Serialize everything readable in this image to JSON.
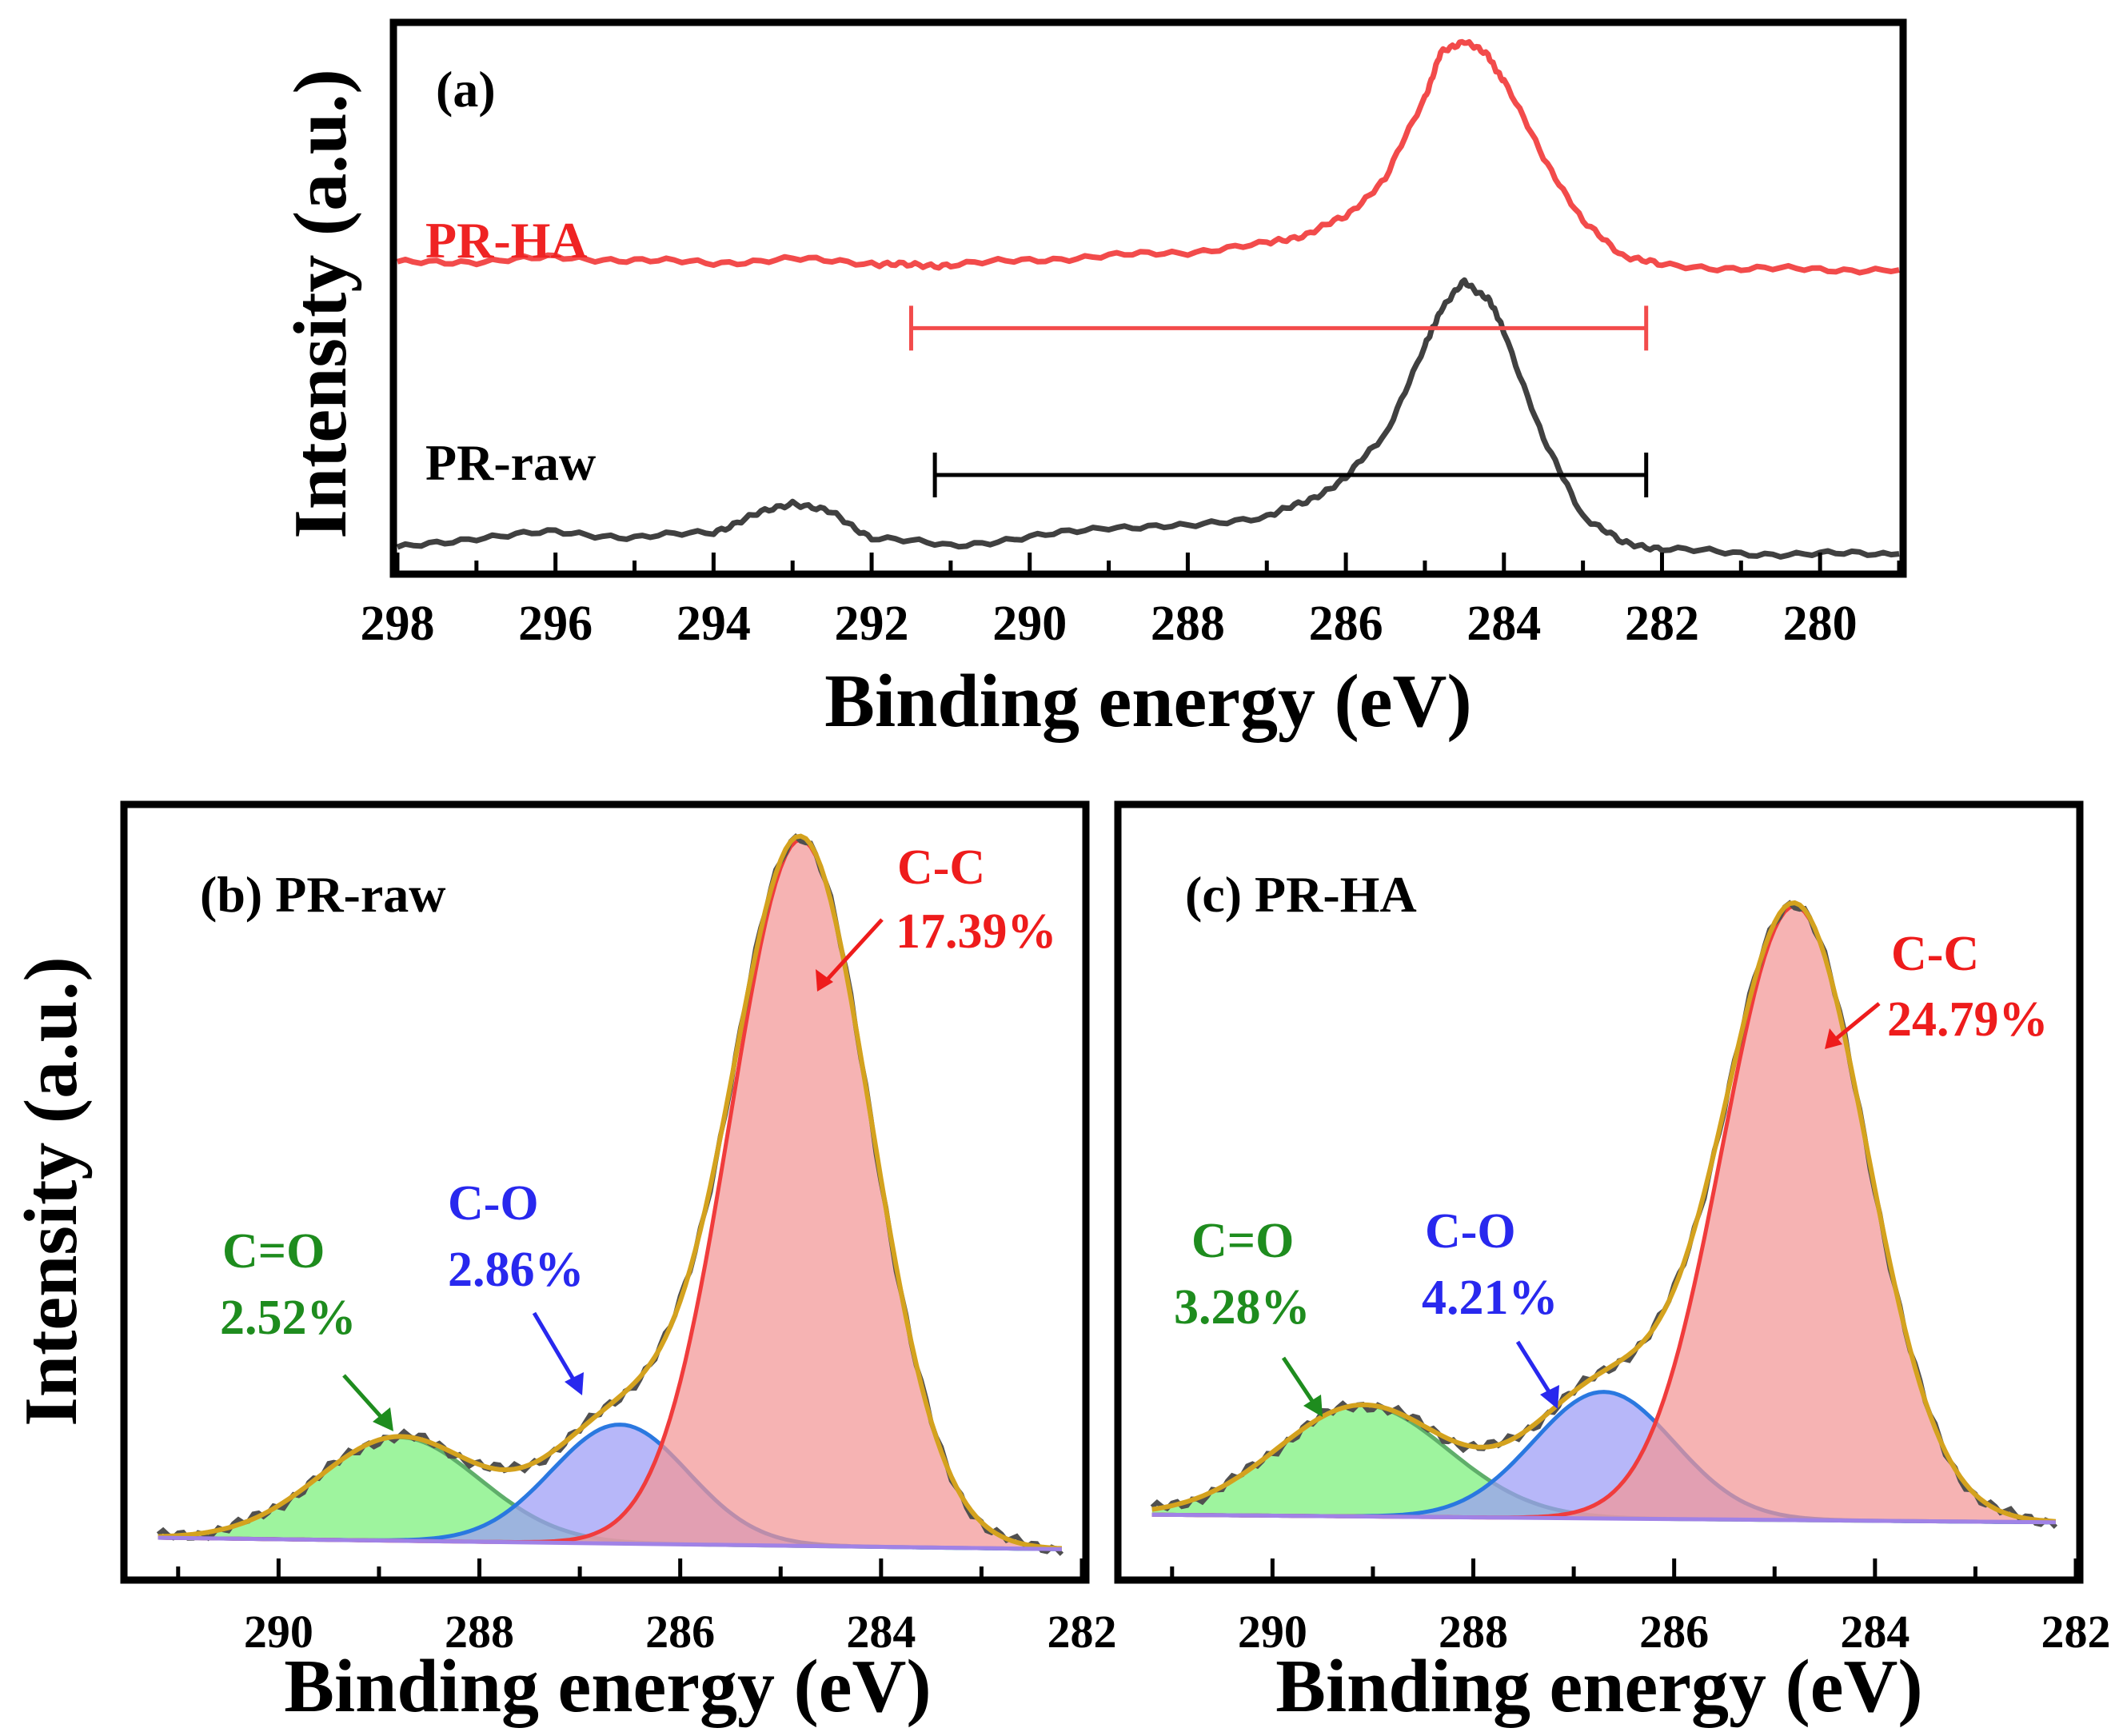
{
  "figure": {
    "ylabel_text": "Intensity (a.u.)",
    "xlabel_text": "Binding energy (eV)"
  },
  "chart_data": [
    {
      "panel": "a",
      "type": "line",
      "title": "(a)",
      "xlabel": "Binding energy (eV)",
      "ylabel": "Intensity (a.u.)",
      "xlim": [
        298,
        279
      ],
      "xticks": [
        "298",
        "296",
        "294",
        "292",
        "290",
        "288",
        "286",
        "284",
        "282",
        "280"
      ],
      "ylim": [
        0,
        1
      ],
      "series": [
        {
          "name": "PR-HA",
          "color": "#f24b4b",
          "x": [
            298.0,
            297.0,
            296.0,
            295.0,
            294.0,
            293.0,
            292.0,
            291.5,
            291.0,
            290.0,
            289.0,
            288.0,
            287.0,
            286.5,
            286.0,
            285.5,
            285.0,
            284.8,
            284.5,
            284.2,
            284.0,
            283.5,
            283.0,
            282.5,
            282.0,
            281.0,
            280.0,
            279.0
          ],
          "y": [
            0.565,
            0.568,
            0.575,
            0.57,
            0.565,
            0.572,
            0.565,
            0.56,
            0.562,
            0.57,
            0.578,
            0.585,
            0.6,
            0.618,
            0.65,
            0.72,
            0.87,
            0.95,
            0.975,
            0.945,
            0.9,
            0.76,
            0.64,
            0.58,
            0.56,
            0.555,
            0.553,
            0.552
          ]
        },
        {
          "name": "PR-raw",
          "color": "#404040",
          "x": [
            298.0,
            297.0,
            296.0,
            295.0,
            294.0,
            293.5,
            293.0,
            292.5,
            292.0,
            291.0,
            290.0,
            289.0,
            288.0,
            287.0,
            286.5,
            286.0,
            285.5,
            285.0,
            284.8,
            284.5,
            284.2,
            284.0,
            283.5,
            283.0,
            282.5,
            282.0,
            281.0,
            280.0,
            279.0
          ],
          "y": [
            0.04,
            0.06,
            0.07,
            0.06,
            0.07,
            0.1,
            0.125,
            0.105,
            0.06,
            0.045,
            0.06,
            0.08,
            0.08,
            0.1,
            0.125,
            0.17,
            0.25,
            0.41,
            0.48,
            0.53,
            0.5,
            0.44,
            0.24,
            0.1,
            0.05,
            0.04,
            0.03,
            0.03,
            0.03
          ]
        }
      ],
      "range_bars": [
        {
          "color": "#f24b4b",
          "from": 291.5,
          "to": 282.2
        },
        {
          "color": "#000000",
          "from": 291.2,
          "to": 282.2
        }
      ],
      "legend_labels": [
        "PR-HA",
        "PR-raw"
      ]
    },
    {
      "panel": "b",
      "type": "area",
      "title": "(b) PR-raw",
      "xlabel": "Binding energy (eV)",
      "ylabel": "Intensity (a.u.)",
      "xlim": [
        291.5,
        282
      ],
      "xticks": [
        "290",
        "288",
        "286",
        "284",
        "282"
      ],
      "ylim": [
        0,
        1
      ],
      "baseline": [
        0.05,
        0.035
      ],
      "peaks": [
        {
          "name": "C=O",
          "label": "C=O",
          "percent": "2.52%",
          "center": 288.8,
          "height": 0.135,
          "sigma": 0.8,
          "fill": "#78f078",
          "stroke": "#5fae6a"
        },
        {
          "name": "C-O",
          "label": "C-O",
          "percent": "2.86%",
          "center": 286.6,
          "height": 0.155,
          "sigma": 0.68,
          "fill": "#9b9bf7",
          "stroke": "#2a78e0"
        },
        {
          "name": "C-C",
          "label": "C-C",
          "percent": "17.39%",
          "center": 284.8,
          "height": 0.92,
          "sigma": 0.7,
          "fill": "#f29696",
          "stroke": "#f03c3c"
        }
      ],
      "colors": {
        "raw": "#505050",
        "envelope": "#d4a21e",
        "baseline": "#a082e6",
        "C=O": "#1e8c1e",
        "C-O": "#2828ee",
        "C-C": "#ee1c1c"
      }
    },
    {
      "panel": "c",
      "type": "area",
      "title": "(c) PR-HA",
      "xlabel": "Binding energy (eV)",
      "ylabel": "Intensity (a.u.)",
      "xlim": [
        291.5,
        282
      ],
      "xticks": [
        "290",
        "288",
        "286",
        "284",
        "282"
      ],
      "ylim": [
        0,
        1
      ],
      "baseline": [
        0.08,
        0.07
      ],
      "peaks": [
        {
          "name": "C=O",
          "label": "C=O",
          "percent": "3.28%",
          "center": 289.1,
          "height": 0.145,
          "sigma": 0.85,
          "fill": "#78f078",
          "stroke": "#5fae6a"
        },
        {
          "name": "C-O",
          "label": "C-O",
          "percent": "4.21%",
          "center": 286.7,
          "height": 0.165,
          "sigma": 0.7,
          "fill": "#9b9bf7",
          "stroke": "#2a78e0"
        },
        {
          "name": "C-C",
          "label": "C-C",
          "percent": "24.79%",
          "center": 284.8,
          "height": 0.8,
          "sigma": 0.72,
          "fill": "#f29696",
          "stroke": "#f03c3c"
        }
      ],
      "colors": {
        "raw": "#505050",
        "envelope": "#d4a21e",
        "baseline": "#a082e6",
        "C=O": "#1e8c1e",
        "C-O": "#2828ee",
        "C-C": "#ee1c1c"
      }
    }
  ]
}
